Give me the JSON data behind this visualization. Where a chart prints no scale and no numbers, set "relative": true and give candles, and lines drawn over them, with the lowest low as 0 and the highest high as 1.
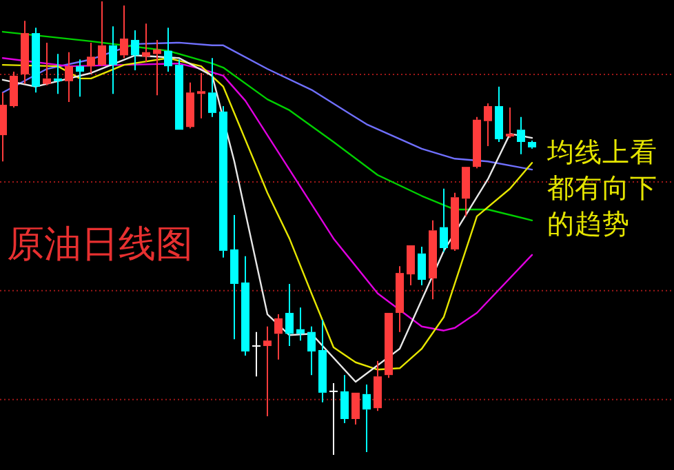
{
  "chart_data": {
    "type": "candlestick",
    "relative": true,
    "marker": "none",
    "ref_lines": [
      {
        "axis": "y",
        "value": 0.839,
        "color": "#a01818",
        "line_style": "dotted"
      },
      {
        "axis": "y",
        "value": 0.602,
        "color": "#a01818",
        "line_style": "dotted"
      },
      {
        "axis": "y",
        "value": 0.362,
        "color": "#a01818",
        "line_style": "dotted"
      },
      {
        "axis": "y",
        "value": 0.122,
        "color": "#a01818",
        "line_style": "dotted"
      }
    ],
    "categories": [
      null,
      null,
      null,
      null,
      null,
      null,
      null,
      null,
      null,
      null,
      null,
      null,
      null,
      null,
      null,
      null,
      null,
      null,
      null,
      null,
      null,
      null,
      null,
      null,
      null,
      null,
      null,
      null,
      null,
      null,
      null,
      null,
      null,
      null,
      null,
      null,
      null,
      null,
      null,
      null,
      null,
      null,
      null,
      null,
      null,
      null,
      null,
      null,
      null
    ],
    "ohlc": [
      [
        0.705,
        0.799,
        0.647,
        0.772
      ],
      [
        0.769,
        0.845,
        0.766,
        0.836
      ],
      [
        0.839,
        0.957,
        0.818,
        0.93
      ],
      [
        0.93,
        0.942,
        0.799,
        0.812
      ],
      [
        0.818,
        0.909,
        0.815,
        0.83
      ],
      [
        0.83,
        0.884,
        0.796,
        0.824
      ],
      [
        0.824,
        0.888,
        0.778,
        0.857
      ],
      [
        0.857,
        0.872,
        0.79,
        0.845
      ],
      [
        0.857,
        0.909,
        0.842,
        0.878
      ],
      [
        0.86,
        1.0,
        0.857,
        0.903
      ],
      [
        0.903,
        0.945,
        0.796,
        0.86
      ],
      [
        0.881,
        0.991,
        0.875,
        0.918
      ],
      [
        0.915,
        0.936,
        0.848,
        0.881
      ],
      [
        0.878,
        0.951,
        0.866,
        0.888
      ],
      [
        0.884,
        0.915,
        0.793,
        0.894
      ],
      [
        0.891,
        0.942,
        0.845,
        0.857
      ],
      [
        0.86,
        0.872,
        0.717,
        0.717
      ],
      [
        0.723,
        0.821,
        0.72,
        0.799
      ],
      [
        0.796,
        0.842,
        0.742,
        0.802
      ],
      [
        0.799,
        0.875,
        0.745,
        0.754
      ],
      [
        0.757,
        0.769,
        0.435,
        0.45
      ],
      [
        0.453,
        0.529,
        0.255,
        0.377
      ],
      [
        0.38,
        0.438,
        0.219,
        0.228
      ],
      [
        0.24,
        0.271,
        0.173,
        0.24
      ],
      [
        0.24,
        0.283,
        0.085,
        0.252
      ],
      [
        0.267,
        0.31,
        0.21,
        0.301
      ],
      [
        0.313,
        0.377,
        0.24,
        0.267
      ],
      [
        0.277,
        0.325,
        0.252,
        0.267
      ],
      [
        0.271,
        0.283,
        0.176,
        0.228
      ],
      [
        0.231,
        0.298,
        0.116,
        0.137
      ],
      [
        0.14,
        0.158,
        0.0,
        0.14
      ],
      [
        0.14,
        0.176,
        0.07,
        0.079
      ],
      [
        0.079,
        0.137,
        0.067,
        0.137
      ],
      [
        0.134,
        0.155,
        0.006,
        0.1
      ],
      [
        0.103,
        0.207,
        0.097,
        0.173
      ],
      [
        0.176,
        0.313,
        0.17,
        0.313
      ],
      [
        0.313,
        0.416,
        0.271,
        0.401
      ],
      [
        0.398,
        0.462,
        0.374,
        0.462
      ],
      [
        0.444,
        0.459,
        0.374,
        0.386
      ],
      [
        0.389,
        0.517,
        0.343,
        0.495
      ],
      [
        0.502,
        0.587,
        0.447,
        0.456
      ],
      [
        0.453,
        0.578,
        0.45,
        0.568
      ],
      [
        0.565,
        0.635,
        0.526,
        0.635
      ],
      [
        0.635,
        0.745,
        0.632,
        0.739
      ],
      [
        0.736,
        0.775,
        0.681,
        0.769
      ],
      [
        0.769,
        0.812,
        0.69,
        0.696
      ],
      [
        0.702,
        0.766,
        0.699,
        0.708
      ],
      [
        0.717,
        0.745,
        0.663,
        0.69
      ],
      [
        0.69,
        0.693,
        0.675,
        0.678
      ]
    ],
    "series": [
      {
        "type": "line",
        "color": "#7070ff",
        "values": [
          0.799,
          null,
          null,
          null,
          0.851,
          null,
          null,
          null,
          0.872,
          null,
          null,
          null,
          0.906,
          null,
          null,
          null,
          0.909,
          null,
          null,
          0.903,
          0.903,
          null,
          null,
          null,
          0.851,
          null,
          null,
          null,
          0.805,
          null,
          null,
          null,
          null,
          0.729,
          null,
          null,
          null,
          null,
          0.675,
          null,
          null,
          0.653,
          null,
          null,
          0.647,
          null,
          null,
          null,
          0.629
        ]
      },
      {
        "type": "line",
        "color": "#00d000",
        "values": [
          0.933,
          null,
          null,
          null,
          null,
          null,
          null,
          null,
          0.912,
          null,
          null,
          null,
          null,
          null,
          null,
          0.891,
          null,
          null,
          null,
          0.863,
          0.854,
          null,
          null,
          null,
          0.784,
          null,
          0.76,
          null,
          null,
          null,
          0.69,
          null,
          null,
          null,
          0.617,
          null,
          null,
          null,
          0.571,
          null,
          null,
          0.541,
          null,
          null,
          0.541,
          null,
          null,
          null,
          0.517
        ]
      },
      {
        "type": "line",
        "color": "#e000e0",
        "values": [
          0.875,
          null,
          null,
          null,
          null,
          null,
          0.857,
          null,
          null,
          null,
          null,
          0.86,
          null,
          null,
          null,
          null,
          0.863,
          null,
          0.851,
          null,
          0.836,
          null,
          0.781,
          null,
          null,
          null,
          0.629,
          null,
          null,
          null,
          0.477,
          null,
          null,
          null,
          0.356,
          null,
          null,
          null,
          0.283,
          null,
          0.274,
          0.28,
          null,
          0.313,
          null,
          null,
          null,
          null,
          0.441
        ]
      },
      {
        "type": "line",
        "color": "#e6e600",
        "values": [
          0.86,
          null,
          null,
          null,
          null,
          0.857,
          null,
          0.83,
          0.83,
          null,
          null,
          0.86,
          null,
          null,
          null,
          0.875,
          null,
          null,
          0.857,
          null,
          0.812,
          null,
          null,
          null,
          0.578,
          null,
          0.477,
          null,
          0.356,
          null,
          0.237,
          null,
          0.204,
          null,
          0.188,
          null,
          0.191,
          null,
          0.234,
          null,
          0.304,
          null,
          null,
          0.526,
          null,
          null,
          0.587,
          null,
          0.644
        ]
      },
      {
        "type": "line",
        "color": "#e8e8e8",
        "values": [
          0.827,
          null,
          null,
          0.812,
          null,
          null,
          null,
          null,
          0.842,
          null,
          null,
          null,
          0.881,
          null,
          null,
          null,
          0.875,
          null,
          null,
          0.836,
          null,
          0.647,
          null,
          null,
          0.31,
          null,
          0.264,
          null,
          0.267,
          null,
          null,
          null,
          0.161,
          null,
          null,
          null,
          0.234,
          null,
          null,
          null,
          0.45,
          null,
          null,
          null,
          0.608,
          null,
          0.708,
          null,
          0.699
        ]
      }
    ],
    "annotations": [
      "原油日线图",
      "均线上看都有向下的趋势"
    ]
  }
}
